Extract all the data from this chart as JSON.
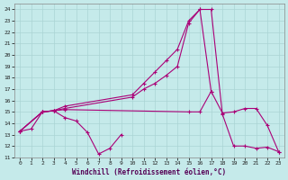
{
  "xlabel": "Windchill (Refroidissement éolien,°C)",
  "xlim": [
    -0.5,
    23.5
  ],
  "ylim": [
    11,
    24.5
  ],
  "xticks": [
    0,
    1,
    2,
    3,
    4,
    5,
    6,
    7,
    8,
    9,
    10,
    11,
    12,
    13,
    14,
    15,
    16,
    17,
    18,
    19,
    20,
    21,
    22,
    23
  ],
  "yticks": [
    11,
    12,
    13,
    14,
    15,
    16,
    17,
    18,
    19,
    20,
    21,
    22,
    23,
    24
  ],
  "bg_color": "#c5eaea",
  "grid_color": "#aad4d4",
  "line_color": "#aa0077",
  "line1": {
    "x": [
      0,
      1,
      2,
      3,
      4,
      5,
      6,
      7,
      8,
      9
    ],
    "y": [
      13.3,
      13.5,
      15.0,
      15.1,
      14.5,
      14.2,
      13.2,
      11.3,
      11.8,
      13.0
    ]
  },
  "line2": {
    "x": [
      0,
      2,
      3,
      4,
      15,
      16,
      17,
      18,
      19,
      20,
      21,
      22,
      23
    ],
    "y": [
      13.3,
      15.0,
      15.1,
      15.2,
      15.0,
      15.0,
      16.8,
      14.9,
      15.0,
      15.3,
      15.3,
      13.8,
      11.5
    ]
  },
  "line3": {
    "x": [
      0,
      2,
      3,
      4,
      10,
      11,
      12,
      13,
      14,
      15,
      16,
      17,
      18,
      19,
      20,
      21,
      22,
      23
    ],
    "y": [
      13.3,
      15.0,
      15.1,
      15.3,
      16.3,
      17.0,
      17.5,
      18.2,
      19.0,
      22.8,
      24.0,
      24.0,
      14.8,
      12.0,
      12.0,
      11.8,
      11.9,
      11.5
    ]
  },
  "line4": {
    "x": [
      0,
      2,
      3,
      4,
      10,
      11,
      12,
      13,
      14,
      15,
      16,
      17
    ],
    "y": [
      13.3,
      15.0,
      15.1,
      15.5,
      16.5,
      17.5,
      18.5,
      19.5,
      20.5,
      23.0,
      24.0,
      16.8
    ]
  }
}
